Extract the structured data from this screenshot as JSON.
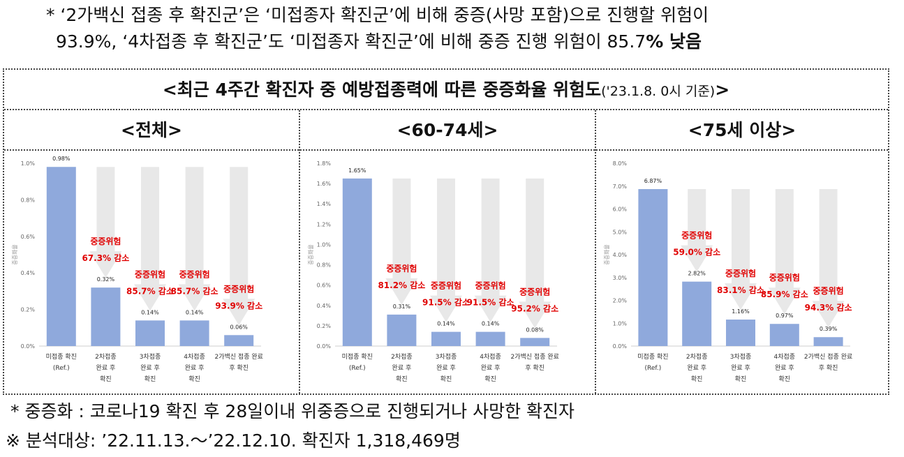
{
  "notes": {
    "line1": "*  ‘2가백신 접종 후 확진군’은 ‘미접종자 확진군’에 비해 중증(사망 포함)으로 진행할 위험이",
    "line2_a": "93.9%, ‘4차접종 후 확진군’도 ‘미접종자 확진군’에 비해 중증 진행 위험이 85.7",
    "line2_b": "% 낮음"
  },
  "title_main": "<최근 4주간 확진자 중 예방접종력에 따른 중증화율 위험도",
  "title_small": "('23.1.8. 0시 기준)",
  "title_end": ">",
  "footnotes": {
    "f1": "* 중증화 : 코로나19 확진 후 28일이내 위중증으로 진행되거나 사망한 확진자",
    "f2": "※ 분석대상: ’22.11.13.～’22.12.10. 확진자 1,318,469명"
  },
  "chart_data": [
    {
      "type": "bar",
      "panel_title": "<전체>",
      "ylabel": "중증화율",
      "ylim": [
        0,
        1.0
      ],
      "yticks": [
        "0.0%",
        "0.2%",
        "0.4%",
        "0.6%",
        "0.8%",
        "1.0%"
      ],
      "categories": [
        [
          "미접종 확진",
          "(Ref.)"
        ],
        [
          "2차접종",
          "완료 후",
          "확진"
        ],
        [
          "3차접종",
          "완료 후",
          "확진"
        ],
        [
          "4차접종",
          "완료 후",
          "확진"
        ],
        [
          "2가백신 접종 완료",
          "후 확진"
        ]
      ],
      "values": [
        0.98,
        0.32,
        0.14,
        0.14,
        0.06
      ],
      "value_labels": [
        "0.98%",
        "0.32%",
        "0.14%",
        "0.14%",
        "0.06%"
      ],
      "annotations": [
        null,
        [
          "중증위험",
          "67.3% 감소"
        ],
        [
          "중증위험",
          "85.7% 감소"
        ],
        [
          "중증위험",
          "85.7% 감소"
        ],
        [
          "중증위험",
          "93.9% 감소"
        ]
      ],
      "colors": {
        "bar": "#8fa9dc",
        "arrow": "#e8e8e8",
        "annotation": "#e00000"
      }
    },
    {
      "type": "bar",
      "panel_title": "<60-74세>",
      "ylabel": "중증화율",
      "ylim": [
        0,
        1.8
      ],
      "yticks": [
        "0.0%",
        "0.2%",
        "0.4%",
        "0.6%",
        "0.8%",
        "1.0%",
        "1.2%",
        "1.4%",
        "1.6%",
        "1.8%"
      ],
      "categories": [
        [
          "미접종 확진",
          "(Ref.)"
        ],
        [
          "2차접종",
          "완료 후",
          "확진"
        ],
        [
          "3차접종",
          "완료 후",
          "확진"
        ],
        [
          "4차접종",
          "완료 후",
          "확진"
        ],
        [
          "2가백신 접종 완료",
          "후 확진"
        ]
      ],
      "values": [
        1.65,
        0.31,
        0.14,
        0.14,
        0.08
      ],
      "value_labels": [
        "1.65%",
        "0.31%",
        "0.14%",
        "0.14%",
        "0.08%"
      ],
      "annotations": [
        null,
        [
          "중증위험",
          "81.2% 감소"
        ],
        [
          "중증위험",
          "91.5% 감소"
        ],
        [
          "중증위험",
          "91.5% 감소"
        ],
        [
          "중증위험",
          "95.2% 감소"
        ]
      ],
      "colors": {
        "bar": "#8fa9dc",
        "arrow": "#e8e8e8",
        "annotation": "#e00000"
      }
    },
    {
      "type": "bar",
      "panel_title": "<75세 이상>",
      "ylabel": "중증화율",
      "ylim": [
        0,
        8.0
      ],
      "yticks": [
        "0.0%",
        "1.0%",
        "2.0%",
        "3.0%",
        "4.0%",
        "5.0%",
        "6.0%",
        "7.0%",
        "8.0%"
      ],
      "categories": [
        [
          "미접종 확진",
          "(Ref.)"
        ],
        [
          "2차접종",
          "완료 후",
          "확진"
        ],
        [
          "3차접종",
          "완료 후",
          "확진"
        ],
        [
          "4차접종",
          "완료 후",
          "확진"
        ],
        [
          "2가백신 접종 완료",
          "후 확진"
        ]
      ],
      "values": [
        6.87,
        2.82,
        1.16,
        0.97,
        0.39
      ],
      "value_labels": [
        "6.87%",
        "2.82%",
        "1.16%",
        "0.97%",
        "0.39%"
      ],
      "annotations": [
        null,
        [
          "중증위험",
          "59.0% 감소"
        ],
        [
          "중증위험",
          "83.1% 감소"
        ],
        [
          "중증위험",
          "85.9% 감소"
        ],
        [
          "중증위험",
          "94.3% 감소"
        ]
      ],
      "colors": {
        "bar": "#8fa9dc",
        "arrow": "#e8e8e8",
        "annotation": "#e00000"
      }
    }
  ]
}
